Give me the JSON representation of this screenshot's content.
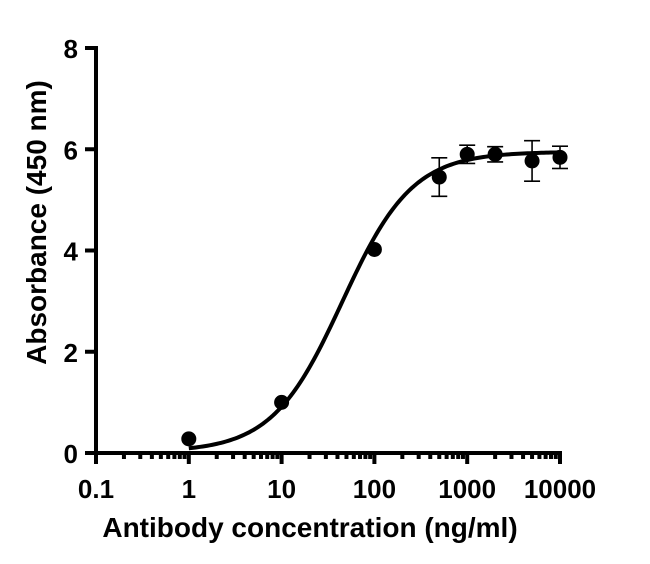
{
  "chart_data": {
    "type": "scatter",
    "title": "",
    "xlabel": "Antibody concentration (ng/ml)",
    "ylabel": "Absorbance (450 nm)",
    "x_scale": "log",
    "xlim": [
      0.1,
      10000
    ],
    "ylim": [
      0,
      8
    ],
    "x_ticks": [
      0.1,
      1,
      10,
      100,
      1000,
      10000
    ],
    "x_tick_labels": [
      "0.1",
      "1",
      "10",
      "100",
      "1000",
      "10000"
    ],
    "y_ticks": [
      0,
      2,
      4,
      6,
      8
    ],
    "y_tick_labels": [
      "0",
      "2",
      "4",
      "6",
      "8"
    ],
    "grid": false,
    "legend": "none",
    "series": [
      {
        "x": [
          1,
          10,
          100,
          500,
          1000,
          2000,
          5000,
          10000
        ],
        "y": [
          0.28,
          1.0,
          4.02,
          5.45,
          5.9,
          5.9,
          5.77,
          5.84
        ],
        "error": [
          0.0,
          0.0,
          0.0,
          0.38,
          0.18,
          0.15,
          0.4,
          0.22
        ],
        "color": "#000000"
      }
    ],
    "fit_curve": {
      "model": "4PL",
      "bottom": 0.02,
      "top": 5.95,
      "ec50": 45,
      "hill": 1.15
    }
  }
}
